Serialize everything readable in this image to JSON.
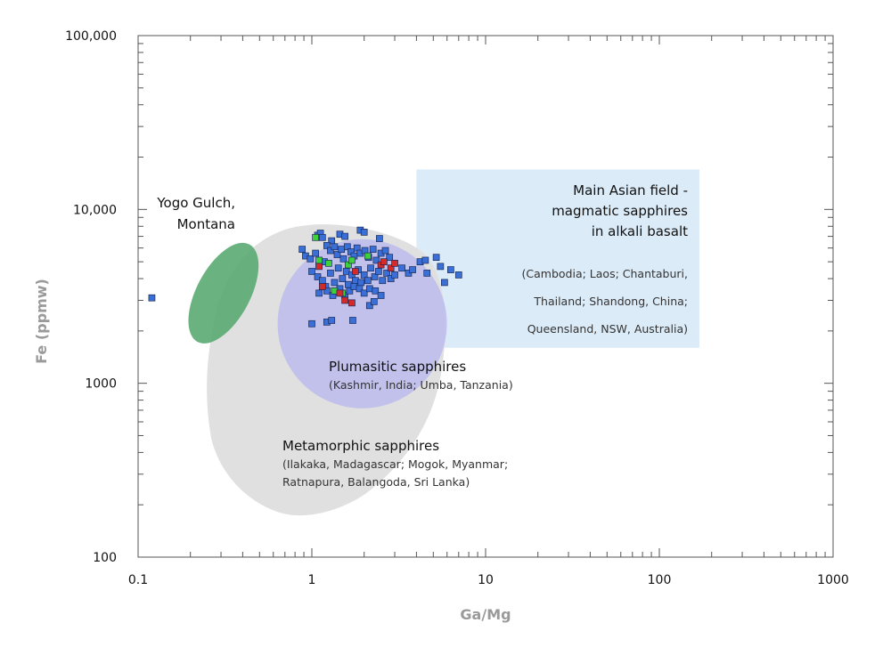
{
  "chart_data": {
    "type": "scatter",
    "xlabel": "Ga/Mg",
    "ylabel": "Fe (ppmw)",
    "xscale": "log",
    "yscale": "log",
    "xlim": [
      0.1,
      1000
    ],
    "ylim": [
      100,
      100000
    ],
    "x_ticks": [
      {
        "value": 0.1,
        "label": "0.1"
      },
      {
        "value": 1,
        "label": "1"
      },
      {
        "value": 10,
        "label": "10"
      },
      {
        "value": 100,
        "label": "100"
      },
      {
        "value": 1000,
        "label": "1000"
      }
    ],
    "y_ticks": [
      {
        "value": 100,
        "label": "100"
      },
      {
        "value": 1000,
        "label": "1000"
      },
      {
        "value": 10000,
        "label": "10,000"
      },
      {
        "value": 100000,
        "label": "100,000"
      }
    ],
    "grid": false,
    "colors": {
      "blue": "#3b6fd8",
      "green": "#3ecf3a",
      "red": "#d42a2a",
      "metamorphic_field": "#e0e0e0",
      "plumasitic_field": "#b8b8ee",
      "asian_field": "#dcebf8",
      "yogo_field": "#5aaa72"
    },
    "fields": [
      {
        "id": "asian",
        "title": [
          "Main Asian field -",
          "magmatic sapphires",
          "in alkali basalt"
        ],
        "sub": [
          "(Cambodia; Laos; Chantaburi,",
          "Thailand; Shandong, China;",
          "Queensland, NSW, Australia)"
        ],
        "x_range": [
          4,
          170
        ],
        "y_range": [
          1600,
          17000
        ]
      },
      {
        "id": "plumasitic",
        "title": [
          "Plumasitic sapphires"
        ],
        "sub": [
          "(Kashmir, India; Umba, Tanzania)"
        ],
        "center": [
          1.95,
          2200
        ]
      },
      {
        "id": "metamorphic",
        "title": [
          "Metamorphic sapphires"
        ],
        "sub": [
          "(Ilakaka, Madagascar; Mogok, Myanmar;",
          "Ratnapura, Balangoda, Sri Lanka)"
        ]
      },
      {
        "id": "yogo",
        "title": [
          "Yogo Gulch,",
          "Montana"
        ],
        "sub": [],
        "center": [
          0.31,
          3300
        ]
      }
    ],
    "series": [
      {
        "color": "blue",
        "points": [
          [
            0.12,
            3100
          ],
          [
            1.0,
            2200
          ],
          [
            1.22,
            2250
          ],
          [
            1.3,
            2300
          ],
          [
            1.72,
            2300
          ],
          [
            2.15,
            2800
          ],
          [
            2.28,
            2950
          ],
          [
            1.08,
            7100
          ],
          [
            1.12,
            7300
          ],
          [
            1.15,
            6900
          ],
          [
            1.3,
            6600
          ],
          [
            1.45,
            7200
          ],
          [
            1.55,
            7000
          ],
          [
            1.9,
            7600
          ],
          [
            2.0,
            7400
          ],
          [
            2.45,
            6800
          ],
          [
            0.88,
            5900
          ],
          [
            0.92,
            5400
          ],
          [
            0.98,
            5200
          ],
          [
            1.05,
            5600
          ],
          [
            1.1,
            4800
          ],
          [
            1.18,
            5000
          ],
          [
            1.22,
            6200
          ],
          [
            1.28,
            5800
          ],
          [
            1.35,
            6100
          ],
          [
            1.4,
            5500
          ],
          [
            1.48,
            5900
          ],
          [
            1.52,
            5200
          ],
          [
            1.6,
            6100
          ],
          [
            1.68,
            5700
          ],
          [
            1.75,
            5400
          ],
          [
            1.82,
            6000
          ],
          [
            1.9,
            5600
          ],
          [
            2.02,
            5800
          ],
          [
            2.12,
            5300
          ],
          [
            2.25,
            5900
          ],
          [
            2.35,
            5100
          ],
          [
            2.5,
            5600
          ],
          [
            2.65,
            5800
          ],
          [
            2.8,
            5300
          ],
          [
            1.0,
            4400
          ],
          [
            1.08,
            4100
          ],
          [
            1.15,
            3900
          ],
          [
            1.2,
            3600
          ],
          [
            1.28,
            4300
          ],
          [
            1.35,
            3800
          ],
          [
            1.42,
            4600
          ],
          [
            1.5,
            4000
          ],
          [
            1.58,
            4400
          ],
          [
            1.62,
            3700
          ],
          [
            1.7,
            4200
          ],
          [
            1.78,
            3900
          ],
          [
            1.85,
            4500
          ],
          [
            1.92,
            3800
          ],
          [
            2.0,
            4200
          ],
          [
            2.1,
            3900
          ],
          [
            2.18,
            4600
          ],
          [
            2.3,
            4100
          ],
          [
            2.42,
            4400
          ],
          [
            2.55,
            3900
          ],
          [
            2.7,
            4300
          ],
          [
            2.85,
            4000
          ],
          [
            3.0,
            4200
          ],
          [
            1.1,
            3300
          ],
          [
            1.22,
            3400
          ],
          [
            1.32,
            3200
          ],
          [
            1.45,
            3500
          ],
          [
            1.55,
            3200
          ],
          [
            1.65,
            3400
          ],
          [
            1.75,
            3600
          ],
          [
            1.88,
            3500
          ],
          [
            2.0,
            3300
          ],
          [
            2.15,
            3500
          ],
          [
            2.32,
            3400
          ],
          [
            2.5,
            3200
          ],
          [
            3.3,
            4600
          ],
          [
            3.6,
            4300
          ],
          [
            3.8,
            4500
          ],
          [
            4.2,
            5000
          ],
          [
            4.5,
            5100
          ],
          [
            4.6,
            4300
          ],
          [
            5.2,
            5300
          ],
          [
            5.5,
            4700
          ],
          [
            5.8,
            3800
          ],
          [
            6.3,
            4500
          ],
          [
            7.0,
            4200
          ]
        ]
      },
      {
        "color": "green",
        "points": [
          [
            1.05,
            6900
          ],
          [
            1.1,
            5100
          ],
          [
            1.25,
            4900
          ],
          [
            1.35,
            3400
          ],
          [
            1.5,
            3300
          ],
          [
            1.62,
            4800
          ],
          [
            1.7,
            5100
          ],
          [
            2.1,
            5400
          ]
        ]
      },
      {
        "color": "red",
        "points": [
          [
            1.1,
            4700
          ],
          [
            1.15,
            3600
          ],
          [
            1.45,
            3300
          ],
          [
            1.55,
            3000
          ],
          [
            1.7,
            2900
          ],
          [
            1.78,
            4400
          ],
          [
            2.5,
            4800
          ],
          [
            2.6,
            5000
          ],
          [
            2.85,
            4600
          ],
          [
            3.0,
            4900
          ]
        ]
      }
    ]
  }
}
